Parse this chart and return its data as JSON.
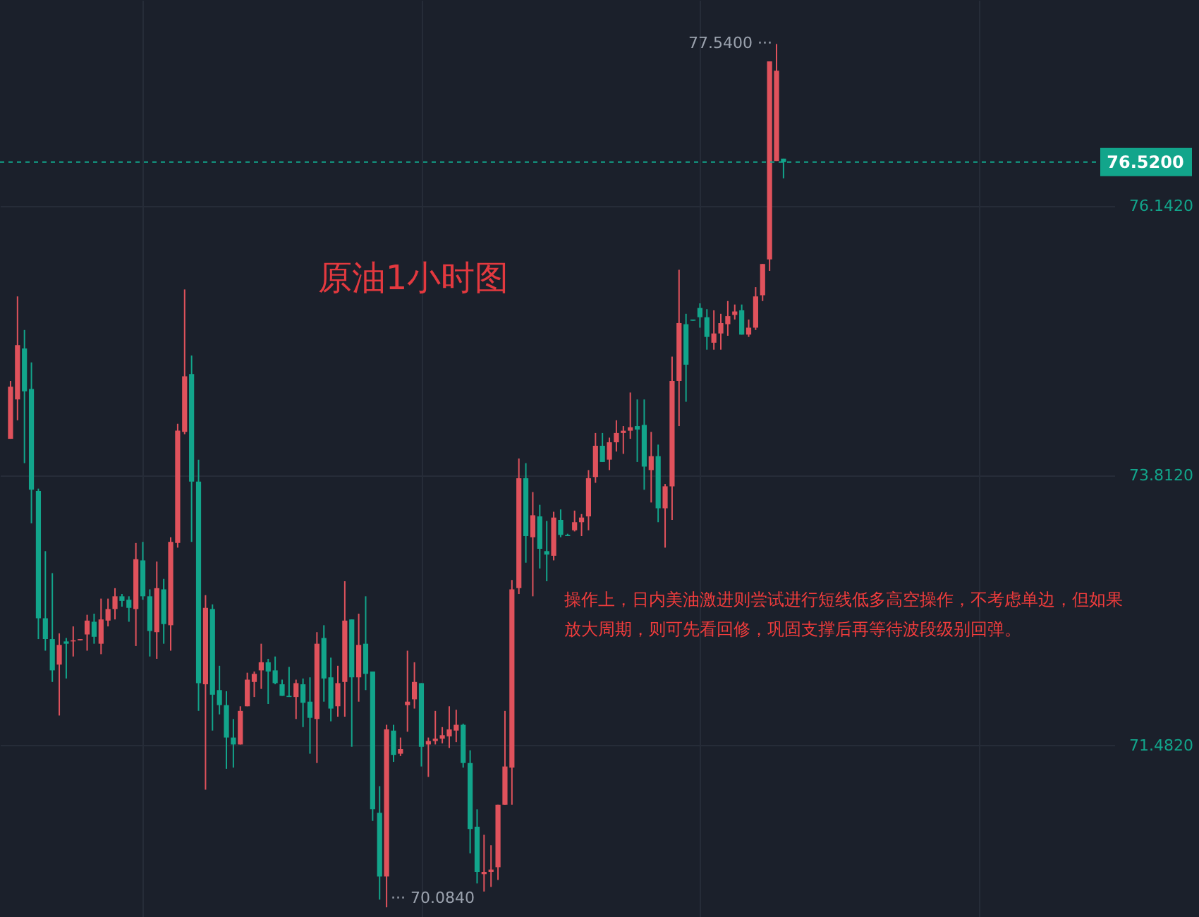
{
  "chart_data": {
    "type": "candlestick",
    "title": "原油1小时图",
    "categories": [
      null,
      null,
      null,
      null,
      null,
      null,
      null,
      null,
      null,
      null,
      null,
      null,
      null,
      null,
      null,
      null,
      null,
      null,
      null,
      null,
      null,
      null,
      null,
      null,
      null,
      null,
      null,
      null,
      null,
      null,
      null,
      null,
      null,
      null,
      null,
      null,
      null,
      null,
      null,
      null,
      null,
      null,
      null,
      null,
      null,
      null,
      null,
      null,
      null,
      null,
      null,
      null,
      null,
      null,
      null,
      null,
      null,
      null,
      null,
      null,
      null,
      null,
      null,
      null,
      null,
      null,
      null,
      null,
      null,
      null,
      null,
      null,
      null,
      null,
      null,
      null,
      null,
      null,
      null,
      null,
      null,
      null,
      null,
      null,
      null,
      null,
      null,
      null,
      null,
      null,
      null,
      null,
      null,
      null,
      null,
      null,
      null,
      null,
      null,
      null,
      null,
      null,
      null,
      null,
      null,
      null,
      null,
      null,
      null,
      null,
      null,
      null,
      null,
      null,
      null,
      null,
      null,
      null,
      null,
      null,
      null,
      null,
      null,
      null,
      null,
      null,
      null,
      null,
      null,
      null,
      null,
      null,
      null,
      null,
      null,
      null,
      null,
      null,
      null,
      null,
      null,
      null,
      null,
      null,
      null,
      null,
      null,
      null,
      null,
      null,
      null,
      null,
      null,
      null,
      null,
      null,
      null,
      null
    ],
    "ohlc": [
      [
        74.13,
        74.63,
        74.13,
        74.58
      ],
      [
        74.47,
        75.36,
        74.29,
        74.94
      ],
      [
        74.91,
        75.07,
        73.92,
        74.54
      ],
      [
        74.56,
        74.79,
        73.4,
        73.69
      ],
      [
        73.68,
        73.7,
        72.4,
        72.58
      ],
      [
        72.58,
        73.16,
        72.3,
        72.4
      ],
      [
        72.4,
        72.97,
        72.03,
        72.13
      ],
      [
        72.18,
        72.45,
        71.74,
        72.35
      ],
      [
        72.38,
        72.41,
        72.06,
        72.36
      ],
      [
        72.38,
        72.51,
        72.25,
        72.39
      ],
      [
        72.39,
        72.4,
        72.39,
        72.4
      ],
      [
        72.44,
        72.61,
        72.3,
        72.56
      ],
      [
        72.55,
        72.62,
        72.36,
        72.42
      ],
      [
        72.36,
        72.75,
        72.27,
        72.57
      ],
      [
        72.56,
        72.75,
        72.51,
        72.66
      ],
      [
        72.66,
        72.84,
        72.57,
        72.77
      ],
      [
        72.77,
        72.79,
        72.68,
        72.73
      ],
      [
        72.74,
        72.77,
        72.55,
        72.67
      ],
      [
        72.66,
        73.23,
        72.34,
        73.09
      ],
      [
        73.08,
        73.24,
        72.74,
        72.77
      ],
      [
        72.77,
        72.83,
        72.25,
        72.47
      ],
      [
        72.46,
        73.07,
        72.23,
        72.84
      ],
      [
        72.83,
        72.92,
        72.36,
        72.53
      ],
      [
        72.52,
        73.28,
        72.3,
        73.24
      ],
      [
        73.23,
        74.26,
        73.19,
        74.2
      ],
      [
        74.19,
        75.42,
        74.17,
        74.67
      ],
      [
        74.69,
        74.85,
        73.24,
        73.76
      ],
      [
        73.76,
        73.95,
        71.78,
        72.02
      ],
      [
        72.01,
        72.78,
        71.1,
        72.67
      ],
      [
        72.66,
        72.7,
        71.61,
        71.92
      ],
      [
        71.96,
        72.17,
        71.75,
        71.83
      ],
      [
        71.83,
        71.95,
        71.28,
        71.55
      ],
      [
        71.55,
        71.71,
        71.29,
        71.49
      ],
      [
        71.49,
        71.82,
        71.49,
        71.78
      ],
      [
        71.82,
        72.11,
        71.82,
        72.05
      ],
      [
        72.03,
        72.12,
        71.9,
        72.1
      ],
      [
        72.13,
        72.36,
        71.97,
        72.2
      ],
      [
        72.2,
        72.23,
        71.84,
        72.12
      ],
      [
        72.13,
        72.25,
        72.01,
        72.02
      ],
      [
        72.01,
        72.05,
        71.91,
        71.91
      ],
      [
        71.91,
        72.16,
        71.9,
        71.9
      ],
      [
        71.9,
        72.05,
        71.71,
        72.02
      ],
      [
        72.01,
        72.06,
        71.64,
        71.85
      ],
      [
        71.86,
        72.07,
        71.41,
        71.72
      ],
      [
        71.71,
        72.46,
        71.33,
        72.36
      ],
      [
        72.41,
        72.52,
        71.86,
        72.06
      ],
      [
        72.07,
        72.24,
        71.69,
        71.8
      ],
      [
        71.82,
        72.17,
        71.73,
        72.02
      ],
      [
        72.03,
        72.9,
        71.73,
        72.56
      ],
      [
        72.57,
        72.57,
        71.47,
        72.07
      ],
      [
        72.07,
        72.62,
        71.86,
        72.35
      ],
      [
        72.36,
        72.77,
        71.96,
        72.1
      ],
      [
        72.12,
        72.12,
        70.83,
        70.93
      ],
      [
        70.9,
        71.13,
        70.15,
        70.35
      ],
      [
        70.35,
        71.66,
        70.084,
        71.62
      ],
      [
        71.61,
        71.66,
        71.34,
        71.4
      ],
      [
        71.41,
        71.55,
        71.39,
        71.45
      ],
      [
        71.83,
        72.3,
        71.6,
        71.86
      ],
      [
        71.88,
        72.2,
        71.8,
        72.03
      ],
      [
        72.02,
        72.02,
        71.3,
        71.47
      ],
      [
        71.49,
        71.55,
        71.21,
        71.52
      ],
      [
        71.52,
        71.78,
        71.49,
        71.54
      ],
      [
        71.54,
        71.64,
        71.5,
        71.57
      ],
      [
        71.56,
        71.82,
        71.46,
        71.62
      ],
      [
        71.61,
        71.79,
        71.51,
        71.66
      ],
      [
        71.66,
        71.67,
        71.29,
        71.33
      ],
      [
        71.33,
        71.44,
        70.55,
        70.76
      ],
      [
        70.78,
        70.93,
        70.29,
        70.39
      ],
      [
        70.37,
        70.71,
        70.22,
        70.39
      ],
      [
        70.39,
        70.62,
        70.26,
        70.41
      ],
      [
        70.43,
        70.97,
        70.32,
        70.97
      ],
      [
        70.97,
        71.78,
        70.97,
        71.3
      ],
      [
        71.29,
        72.91,
        70.97,
        72.83
      ],
      [
        72.84,
        73.96,
        72.79,
        73.79
      ],
      [
        73.79,
        73.92,
        73.06,
        73.29
      ],
      [
        73.28,
        73.67,
        72.77,
        73.47
      ],
      [
        73.46,
        73.56,
        73.01,
        73.18
      ],
      [
        73.16,
        73.42,
        72.9,
        73.13
      ],
      [
        73.12,
        73.5,
        73.08,
        73.45
      ],
      [
        73.43,
        73.52,
        73.28,
        73.3
      ],
      [
        73.3,
        73.31,
        73.29,
        73.29
      ],
      [
        73.34,
        73.51,
        73.33,
        73.41
      ],
      [
        73.41,
        73.48,
        73.29,
        73.45
      ],
      [
        73.46,
        73.86,
        73.34,
        73.79
      ],
      [
        73.8,
        74.18,
        73.75,
        74.07
      ],
      [
        74.07,
        74.18,
        73.93,
        73.93
      ],
      [
        73.95,
        74.14,
        73.86,
        74.1
      ],
      [
        74.1,
        74.29,
        74.02,
        74.18
      ],
      [
        74.18,
        74.24,
        74.0,
        74.2
      ],
      [
        74.2,
        74.53,
        74.13,
        74.23
      ],
      [
        74.24,
        74.47,
        73.93,
        74.21
      ],
      [
        74.25,
        74.47,
        73.69,
        73.89
      ],
      [
        73.86,
        74.19,
        73.58,
        73.98
      ],
      [
        73.98,
        74.08,
        73.41,
        73.53
      ],
      [
        73.53,
        73.74,
        73.19,
        73.72
      ],
      [
        73.72,
        74.84,
        73.43,
        74.63
      ],
      [
        74.63,
        75.59,
        74.24,
        75.13
      ],
      [
        75.12,
        75.21,
        74.45,
        74.77
      ],
      [
        75.16,
        75.16,
        75.15,
        75.15
      ],
      [
        75.26,
        75.3,
        75.09,
        75.18
      ],
      [
        75.18,
        75.25,
        74.9,
        75.01
      ],
      [
        74.96,
        75.24,
        74.9,
        75.04
      ],
      [
        75.04,
        75.21,
        74.9,
        75.13
      ],
      [
        75.12,
        75.32,
        75.02,
        75.19
      ],
      [
        75.2,
        75.29,
        75.16,
        75.23
      ],
      [
        75.24,
        75.29,
        75.03,
        75.03
      ],
      [
        75.03,
        75.16,
        75.01,
        75.09
      ],
      [
        75.09,
        75.44,
        75.07,
        75.36
      ],
      [
        75.37,
        75.64,
        75.32,
        75.64
      ],
      [
        75.68,
        77.39,
        75.58,
        77.39
      ],
      [
        76.53,
        77.54,
        76.53,
        77.31
      ],
      [
        76.55,
        76.55,
        76.38,
        76.52
      ],
      null,
      null,
      null,
      null,
      null,
      null,
      null,
      null,
      null,
      null,
      null,
      null,
      null,
      null,
      null,
      null,
      null,
      null,
      null,
      null,
      null,
      null,
      null,
      null,
      null,
      null,
      null,
      null,
      null,
      null,
      null,
      null,
      null,
      null,
      null,
      null,
      null,
      null,
      null,
      null,
      null,
      null,
      null,
      null,
      null,
      null
    ],
    "colors": [
      "#e0525c",
      "#e0525c",
      "#12a58b",
      "#12a58b",
      "#12a58b",
      "#12a58b",
      "#12a58b",
      "#e0525c",
      "#12a58b",
      "#e0525c",
      "#e0525c",
      "#e0525c",
      "#12a58b",
      "#e0525c",
      "#e0525c",
      "#e0525c",
      "#12a58b",
      "#12a58b",
      "#e0525c",
      "#12a58b",
      "#12a58b",
      "#e0525c",
      "#12a58b",
      "#e0525c",
      "#e0525c",
      "#e0525c",
      "#12a58b",
      "#12a58b",
      "#e0525c",
      "#12a58b",
      "#12a58b",
      "#12a58b",
      "#12a58b",
      "#e0525c",
      "#e0525c",
      "#e0525c",
      "#e0525c",
      "#12a58b",
      "#12a58b",
      "#12a58b",
      "#12a58b",
      "#e0525c",
      "#12a58b",
      "#12a58b",
      "#e0525c",
      "#12a58b",
      "#12a58b",
      "#e0525c",
      "#e0525c",
      "#12a58b",
      "#e0525c",
      "#12a58b",
      "#12a58b",
      "#12a58b",
      "#e0525c",
      "#12a58b",
      "#e0525c",
      "#e0525c",
      "#e0525c",
      "#12a58b",
      "#e0525c",
      "#e0525c",
      "#e0525c",
      "#e0525c",
      "#e0525c",
      "#12a58b",
      "#12a58b",
      "#12a58b",
      "#e0525c",
      "#e0525c",
      "#e0525c",
      "#e0525c",
      "#e0525c",
      "#e0525c",
      "#12a58b",
      "#e0525c",
      "#12a58b",
      "#12a58b",
      "#e0525c",
      "#12a58b",
      "#12a58b",
      "#e0525c",
      "#e0525c",
      "#e0525c",
      "#e0525c",
      "#12a58b",
      "#e0525c",
      "#e0525c",
      "#e0525c",
      "#e0525c",
      "#12a58b",
      "#12a58b",
      "#e0525c",
      "#12a58b",
      "#e0525c",
      "#e0525c",
      "#e0525c",
      "#12a58b",
      "#12a58b",
      "#12a58b",
      "#12a58b",
      "#e0525c",
      "#e0525c",
      "#e0525c",
      "#e0525c",
      "#12a58b",
      "#e0525c",
      "#e0525c",
      "#e0525c",
      "#e0525c",
      "#e0525c",
      "#12a58b",
      null,
      null,
      null,
      null,
      null,
      null,
      null,
      null,
      null,
      null,
      null,
      null,
      null,
      null,
      null,
      null,
      null,
      null,
      null,
      null,
      null,
      null,
      null,
      null,
      null,
      null,
      null,
      null,
      null,
      null,
      null,
      null,
      null,
      null,
      null,
      null,
      null,
      null,
      null,
      null,
      null,
      null,
      null,
      null,
      null,
      null
    ],
    "ylim": [
      70.0,
      77.92
    ],
    "yticks": [
      {
        "value": 71.482,
        "label": "71.4820"
      },
      {
        "value": 73.812,
        "label": "73.8120"
      },
      {
        "value": 76.142,
        "label": "76.1420"
      }
    ],
    "grid": true,
    "tick_labels": "y",
    "ref_lines": [
      {
        "axis": "y",
        "value": 76.52,
        "label": "76.5200",
        "color": "#12a58b",
        "line_style": "dashed"
      }
    ],
    "annotations": [
      "77.5400 ···",
      "··· 70.0840",
      "操作上，日内美油激进则尝试进行短线低多高空操作，不考虑单边，但如果放大周期，则可先看回修，巩固支撑后再等待波段级别回弹。"
    ]
  }
}
